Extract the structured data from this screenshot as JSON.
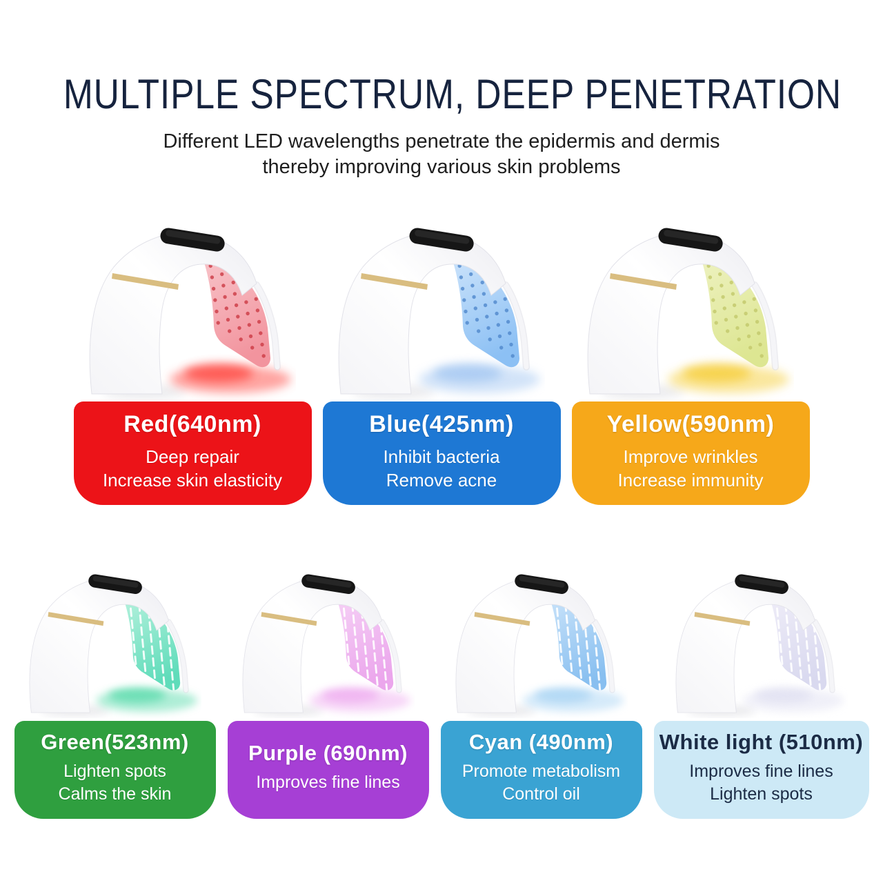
{
  "header": {
    "title": "MULTIPLE SPECTRUM, DEEP PENETRATION",
    "subtitle_line1": "Different LED wavelengths penetrate the epidermis and dermis",
    "subtitle_line2": "thereby improving various skin problems",
    "title_color": "#16233e",
    "subtitle_color": "#1e1e1e"
  },
  "device_style": {
    "shell_color": "#ffffff",
    "shell_shade": "#ededf2",
    "shell_edge": "#e2e2e9",
    "stripe_color": "#d9bd80",
    "top_panel_color": "#161616"
  },
  "spectrums": [
    {
      "id": "red",
      "row": 1,
      "pattern": "dots",
      "label": "Red(640nm)",
      "benefits": [
        "Deep repair",
        "Increase skin elasticity"
      ],
      "card_color": "#ec1318",
      "text_color": "#ffffff",
      "panel_top": "#f8c6cb",
      "panel_bottom": "#f2949e",
      "accent": "#cc3944",
      "glow": "#ff4b45"
    },
    {
      "id": "blue",
      "row": 1,
      "pattern": "dots",
      "label": "Blue(425nm)",
      "benefits": [
        "Inhibit bacteria",
        "Remove acne"
      ],
      "card_color": "#1e78d4",
      "text_color": "#ffffff",
      "panel_top": "#cfe5fb",
      "panel_bottom": "#8cc0f4",
      "accent": "#4f87cc",
      "glow": "#a5c8f2"
    },
    {
      "id": "yellow",
      "row": 1,
      "pattern": "dots",
      "label": "Yellow(590nm)",
      "benefits": [
        "Improve wrinkles",
        "Increase immunity"
      ],
      "card_color": "#f6a81a",
      "text_color": "#ffffff",
      "panel_top": "#eef2c2",
      "panel_bottom": "#dde692",
      "accent": "#c2c86a",
      "glow": "#f6cf3e"
    },
    {
      "id": "green",
      "row": 2,
      "pattern": "streaks",
      "label": "Green(523nm)",
      "benefits": [
        "Lighten spots",
        "Calms the skin"
      ],
      "card_color": "#2f9f3f",
      "text_color": "#ffffff",
      "panel_top": "#b8f2de",
      "panel_bottom": "#5fdcba",
      "accent": "#ffffff",
      "glow": "#5fdcae"
    },
    {
      "id": "purple",
      "row": 2,
      "pattern": "streaks",
      "label": "Purple (690nm)",
      "benefits": [
        "Improves fine lines"
      ],
      "card_color": "#a63fd5",
      "text_color": "#ffffff",
      "panel_top": "#f6d2f6",
      "panel_bottom": "#eba6ec",
      "accent": "#ffffff",
      "glow": "#efaff0"
    },
    {
      "id": "cyan",
      "row": 2,
      "pattern": "streaks",
      "label": "Cyan (490nm)",
      "benefits": [
        "Promote metabolism",
        "Control oil"
      ],
      "card_color": "#3aa3d3",
      "text_color": "#ffffff",
      "panel_top": "#cbe4fa",
      "panel_bottom": "#88bff0",
      "accent": "#ffffff",
      "glow": "#abd5f4"
    },
    {
      "id": "white",
      "row": 2,
      "pattern": "streaks",
      "label": "White light (510nm)",
      "benefits": [
        "Improves fine lines",
        "Lighten spots"
      ],
      "card_color": "#cde9f6",
      "text_color": "#1b2b45",
      "panel_top": "#efedf8",
      "panel_bottom": "#d9d9ef",
      "accent": "#ffffff",
      "glow": "#e1e1f2"
    }
  ]
}
